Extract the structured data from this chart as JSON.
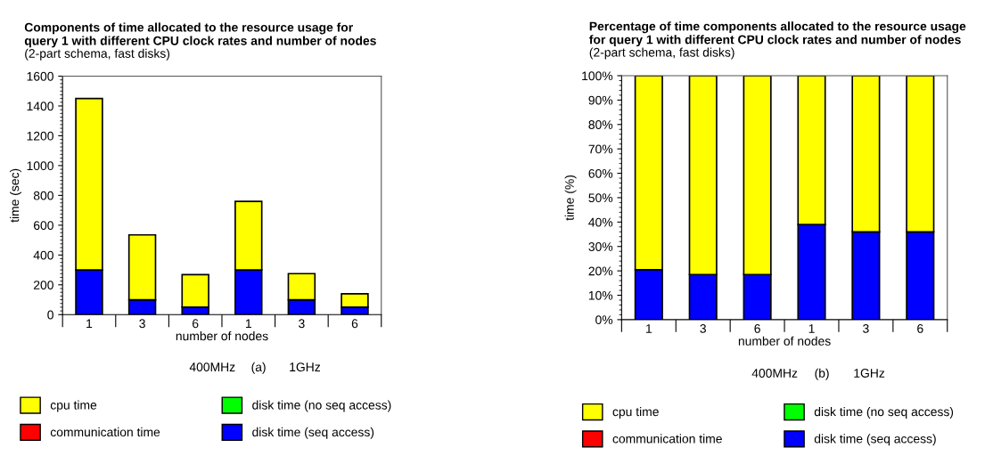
{
  "chart_data": [
    {
      "type": "bar",
      "stacked": true,
      "title": "Components of time allocated to the resource usage for\nquery 1 with different CPU clock rates and number of nodes",
      "subtitle": "(2-part schema, fast disks)",
      "xlabel": "number of nodes",
      "ylabel": "time (sec)",
      "categories": [
        "1",
        "3",
        "6",
        "1",
        "3",
        "6"
      ],
      "series": [
        {
          "name": "disk time (seq access)",
          "color": "#0000ff",
          "values": [
            300,
            100,
            50,
            300,
            100,
            50
          ]
        },
        {
          "name": "disk time (no seq access)",
          "color": "#00ff00",
          "values": [
            0,
            0,
            0,
            0,
            0,
            0
          ]
        },
        {
          "name": "communication time",
          "color": "#ff0000",
          "values": [
            0,
            0,
            0,
            0,
            0,
            0
          ]
        },
        {
          "name": "cpu time",
          "color": "#ffff00",
          "values": [
            1150,
            435,
            218,
            460,
            175,
            90
          ]
        }
      ],
      "ylim": [
        0,
        1600
      ],
      "yticks": [
        0,
        200,
        400,
        600,
        800,
        1000,
        1200,
        1400,
        1600
      ],
      "grid": false,
      "legend": "bottom",
      "annotations": [
        "400MHz",
        "(a)",
        "1GHz"
      ]
    },
    {
      "type": "bar",
      "stacked": true,
      "title": "Percentage of time components allocated to the resource usage\nfor query 1 with different CPU clock rates and number of nodes",
      "subtitle": "(2-part schema, fast disks)",
      "xlabel": "number of nodes",
      "ylabel": "time (%)",
      "categories": [
        "1",
        "3",
        "6",
        "1",
        "3",
        "6"
      ],
      "series": [
        {
          "name": "disk time (seq access)",
          "color": "#0000ff",
          "values": [
            20.5,
            18.5,
            18.5,
            39,
            36,
            36
          ]
        },
        {
          "name": "disk time (no seq access)",
          "color": "#00ff00",
          "values": [
            0,
            0,
            0,
            0,
            0,
            0
          ]
        },
        {
          "name": "communication time",
          "color": "#ff0000",
          "values": [
            0,
            0,
            0,
            0,
            0,
            0
          ]
        },
        {
          "name": "cpu time",
          "color": "#ffff00",
          "values": [
            79.5,
            81.5,
            81.5,
            61,
            64,
            64
          ]
        }
      ],
      "ylim": [
        0,
        100
      ],
      "yticks": [
        {
          "value": 0,
          "label": "0%"
        },
        {
          "value": 10,
          "label": "10%"
        },
        {
          "value": 20,
          "label": "20%"
        },
        {
          "value": 30,
          "label": "30%"
        },
        {
          "value": 40,
          "label": "40%"
        },
        {
          "value": 50,
          "label": "50%"
        },
        {
          "value": 60,
          "label": "60%"
        },
        {
          "value": 70,
          "label": "70%"
        },
        {
          "value": 80,
          "label": "80%"
        },
        {
          "value": 90,
          "label": "90%"
        },
        {
          "value": 100,
          "label": "100%"
        }
      ],
      "grid": false,
      "legend": "bottom",
      "annotations": [
        "400MHz",
        "(b)",
        "1GHz"
      ]
    }
  ]
}
